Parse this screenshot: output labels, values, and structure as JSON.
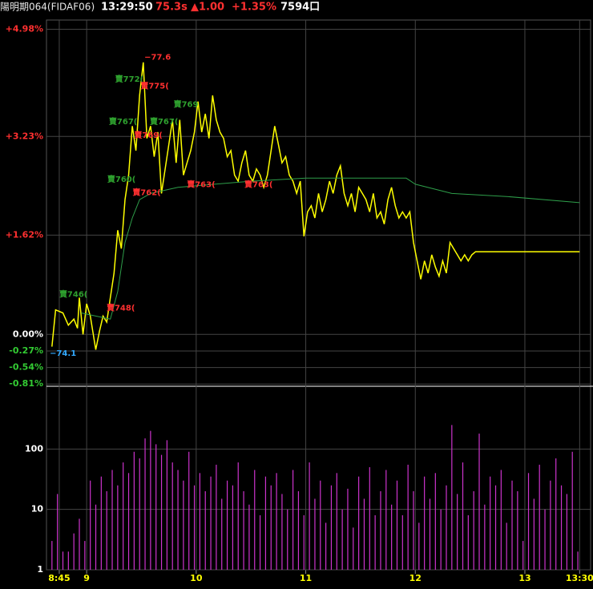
{
  "header": {
    "symbol": "陽明期064(FIDAF06)",
    "time": "13:29:50",
    "price": "75.3s",
    "change": "▲1.00",
    "change_pct": "+1.35%",
    "volume": "7594口"
  },
  "chart_data": [
    {
      "type": "line",
      "xlim": [
        518,
        816
      ],
      "ylim": [
        -0.82,
        5.13
      ],
      "yticks": [
        {
          "value": 4.98,
          "label": "+4.98%"
        },
        {
          "value": 3.23,
          "label": "+3.23%"
        },
        {
          "value": 1.62,
          "label": "+1.62%"
        },
        {
          "value": 0,
          "label": "0.00%"
        },
        {
          "value": -0.27,
          "label": "-0.27%"
        },
        {
          "value": -0.54,
          "label": "-0.54%"
        },
        {
          "value": -0.81,
          "label": "-0.81%"
        }
      ],
      "grid": true,
      "series": [
        {
          "color": "#ffff00",
          "x": [
            521,
            523,
            527,
            530,
            533,
            535,
            536,
            538,
            540,
            542,
            545,
            547,
            549,
            551,
            553,
            555,
            557,
            559,
            561,
            563,
            565,
            567,
            569,
            571,
            573,
            575,
            577,
            579,
            581,
            583,
            585,
            587,
            589,
            591,
            593,
            595,
            597,
            599,
            601,
            603,
            605,
            607,
            609,
            611,
            613,
            615,
            617,
            619,
            621,
            623,
            625,
            627,
            629,
            631,
            633,
            635,
            637,
            639,
            641,
            643,
            645,
            647,
            649,
            651,
            653,
            655,
            657,
            659,
            661,
            663,
            665,
            667,
            669,
            671,
            673,
            675,
            677,
            679,
            681,
            683,
            685,
            687,
            689,
            691,
            693,
            695,
            697,
            699,
            701,
            703,
            705,
            707,
            709,
            711,
            713,
            715,
            717,
            719,
            721,
            723,
            725,
            727,
            729,
            731,
            733,
            735,
            737,
            739,
            741,
            743,
            745,
            747,
            749,
            751,
            753,
            770,
            790,
            810
          ],
          "values": [
            -0.2,
            0.4,
            0.35,
            0.15,
            0.25,
            0.1,
            0.6,
            0.0,
            0.5,
            0.3,
            -0.25,
            0.05,
            0.3,
            0.2,
            0.6,
            1.0,
            1.7,
            1.4,
            2.2,
            2.6,
            3.4,
            3.0,
            3.9,
            4.44,
            3.2,
            3.4,
            2.9,
            3.3,
            2.3,
            2.7,
            3.1,
            3.5,
            2.8,
            3.5,
            2.6,
            2.8,
            3.0,
            3.3,
            3.8,
            3.3,
            3.6,
            3.2,
            3.9,
            3.5,
            3.3,
            3.2,
            2.9,
            3.0,
            2.6,
            2.5,
            2.8,
            3.0,
            2.6,
            2.5,
            2.7,
            2.6,
            2.4,
            2.6,
            3.0,
            3.4,
            3.1,
            2.8,
            2.9,
            2.6,
            2.5,
            2.3,
            2.5,
            1.6,
            2.0,
            2.1,
            1.9,
            2.3,
            2.0,
            2.2,
            2.5,
            2.3,
            2.6,
            2.75,
            2.3,
            2.1,
            2.3,
            2.0,
            2.4,
            2.3,
            2.2,
            2.0,
            2.3,
            1.9,
            2.0,
            1.8,
            2.2,
            2.4,
            2.1,
            1.9,
            2.0,
            1.9,
            2.0,
            1.5,
            1.2,
            0.9,
            1.2,
            1.0,
            1.3,
            1.1,
            0.95,
            1.2,
            1.0,
            1.5,
            1.4,
            1.3,
            1.2,
            1.3,
            1.2,
            1.3,
            1.35,
            1.35,
            1.35,
            1.35
          ]
        },
        {
          "color": "#2e9e4a",
          "x": [
            537,
            545,
            553,
            557,
            561,
            565,
            569,
            575,
            590,
            610,
            630,
            660,
            700,
            715,
            720,
            740,
            770,
            810
          ],
          "values": [
            0.35,
            0.3,
            0.25,
            0.7,
            1.5,
            1.9,
            2.2,
            2.3,
            2.4,
            2.45,
            2.5,
            2.55,
            2.55,
            2.55,
            2.45,
            2.3,
            2.25,
            2.15
          ]
        }
      ],
      "annotations": [
        {
          "text": "−77.6",
          "color": "#ff3030",
          "x": 571.6,
          "y": 4.52
        },
        {
          "text": "賣772(",
          "color": "#2ea02e",
          "x": 555.6,
          "y": 4.16
        },
        {
          "text": "賣775(",
          "color": "#ff3030",
          "x": 569.5,
          "y": 4.05
        },
        {
          "text": "賣769",
          "color": "#2ea02e",
          "x": 587.6,
          "y": 3.75
        },
        {
          "text": "賣767(",
          "color": "#2ea02e",
          "x": 552.2,
          "y": 3.47
        },
        {
          "text": "賣767(",
          "color": "#2ea02e",
          "x": 574.6,
          "y": 3.47
        },
        {
          "text": "賣769(",
          "color": "#ff3030",
          "x": 566.0,
          "y": 3.25
        },
        {
          "text": "賣760(",
          "color": "#2ea02e",
          "x": 551.3,
          "y": 2.53
        },
        {
          "text": "賣762(",
          "color": "#ff3030",
          "x": 565.1,
          "y": 2.31
        },
        {
          "text": "賣763(",
          "color": "#ff3030",
          "x": 594.9,
          "y": 2.44
        },
        {
          "text": "賣763(",
          "color": "#ff3030",
          "x": 626.4,
          "y": 2.44
        },
        {
          "text": "賣746(",
          "color": "#2ea02e",
          "x": 525.0,
          "y": 0.65
        },
        {
          "text": "賣748(",
          "color": "#ff3030",
          "x": 550.9,
          "y": 0.43
        },
        {
          "text": "−74.1",
          "color": "#33aaff",
          "x": 519.8,
          "y": -0.31
        }
      ]
    },
    {
      "type": "bar",
      "log_scale": true,
      "color": "#cc33cc",
      "grid": true,
      "xlim": [
        518,
        816
      ],
      "ylim": [
        1,
        1000
      ],
      "xticks": [
        {
          "value": 525,
          "label": "8:45"
        },
        {
          "value": 540,
          "label": "9"
        },
        {
          "value": 600,
          "label": "10"
        },
        {
          "value": 660,
          "label": "11"
        },
        {
          "value": 720,
          "label": "12"
        },
        {
          "value": 780,
          "label": "13"
        },
        {
          "value": 810,
          "label": "13:30"
        }
      ],
      "yticks": [
        1,
        10,
        100
      ],
      "x": [
        521,
        524,
        527,
        530,
        533,
        536,
        539,
        542,
        545,
        548,
        551,
        554,
        557,
        560,
        563,
        566,
        569,
        572,
        575,
        578,
        581,
        584,
        587,
        590,
        593,
        596,
        599,
        602,
        605,
        608,
        611,
        614,
        617,
        620,
        623,
        626,
        629,
        632,
        635,
        638,
        641,
        644,
        647,
        650,
        653,
        656,
        659,
        662,
        665,
        668,
        671,
        674,
        677,
        680,
        683,
        686,
        689,
        692,
        695,
        698,
        701,
        704,
        707,
        710,
        713,
        716,
        719,
        722,
        725,
        728,
        731,
        734,
        737,
        740,
        743,
        746,
        749,
        752,
        755,
        758,
        761,
        764,
        767,
        770,
        773,
        776,
        779,
        782,
        785,
        788,
        791,
        794,
        797,
        800,
        803,
        806,
        809
      ],
      "values": [
        3,
        18,
        2,
        2,
        4,
        7,
        3,
        30,
        12,
        35,
        20,
        45,
        25,
        60,
        40,
        90,
        70,
        150,
        200,
        120,
        80,
        140,
        60,
        45,
        30,
        90,
        25,
        40,
        20,
        35,
        55,
        15,
        30,
        25,
        60,
        20,
        12,
        45,
        8,
        35,
        25,
        40,
        18,
        10,
        45,
        20,
        8,
        60,
        15,
        30,
        6,
        25,
        40,
        10,
        22,
        5,
        35,
        15,
        50,
        8,
        20,
        45,
        12,
        30,
        8,
        55,
        20,
        6,
        35,
        15,
        40,
        10,
        25,
        250,
        18,
        60,
        8,
        20,
        180,
        12,
        35,
        25,
        45,
        6,
        30,
        20,
        3,
        40,
        15,
        55,
        10,
        30,
        70,
        25,
        18,
        90,
        2
      ]
    }
  ]
}
